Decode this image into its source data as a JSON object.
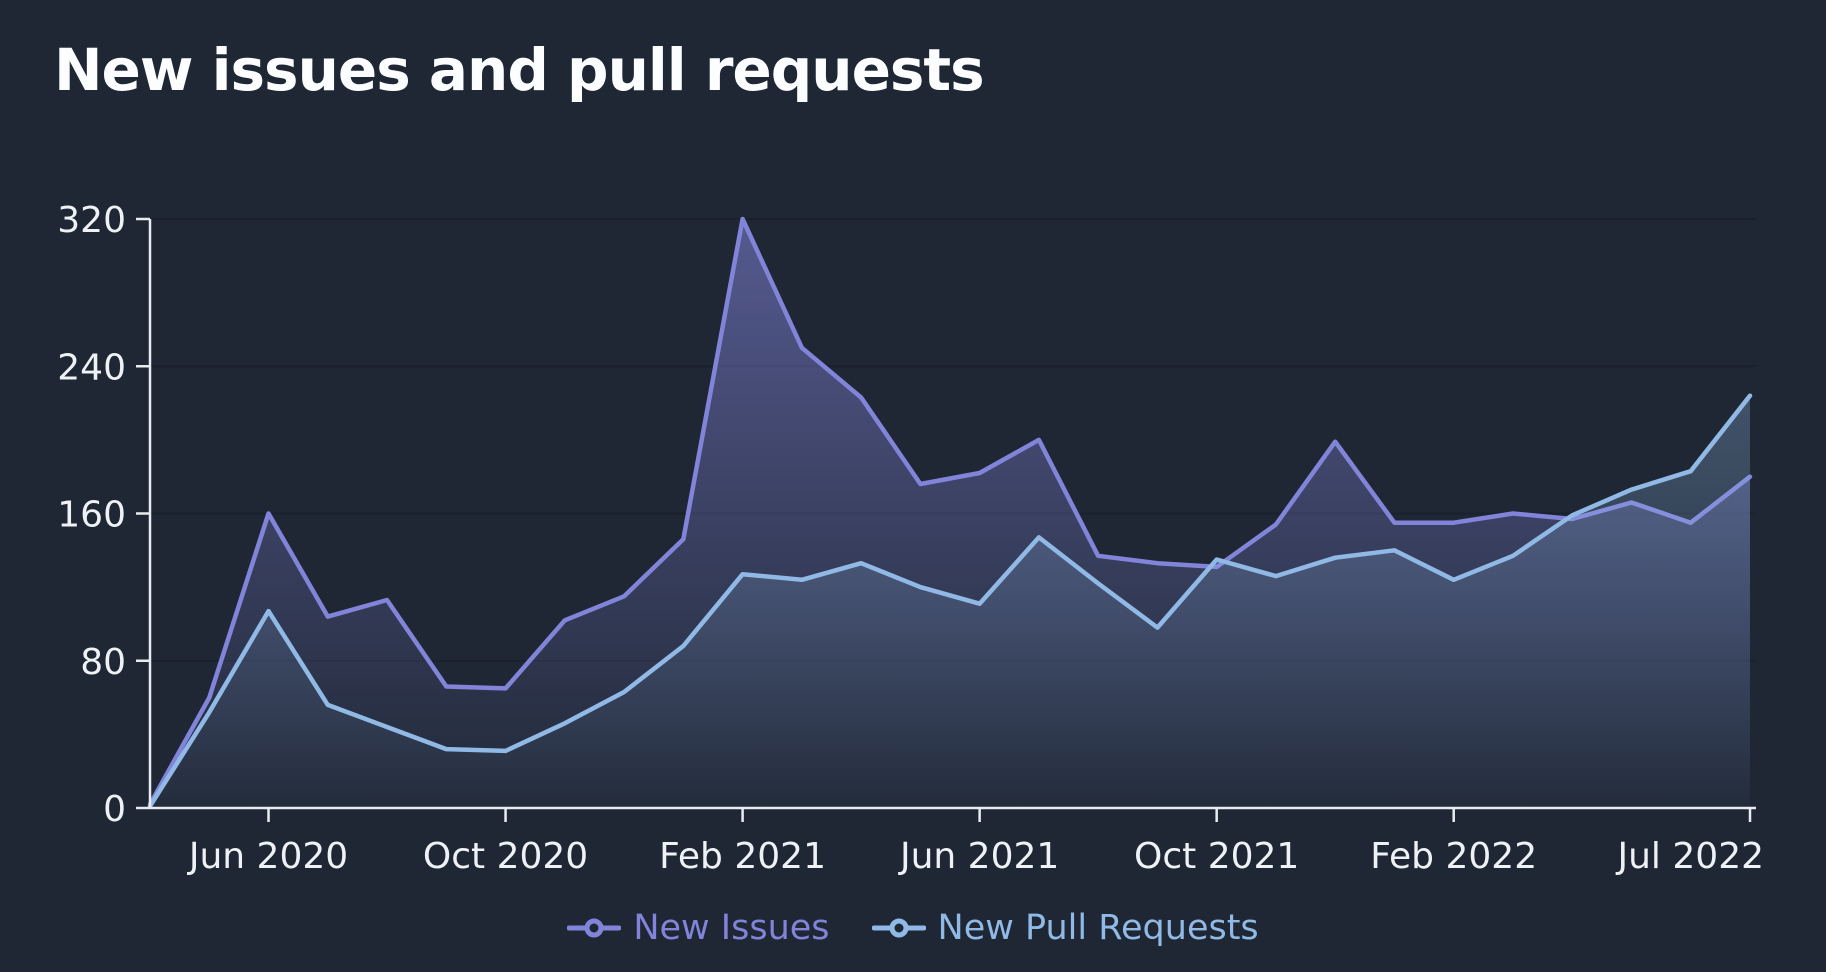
{
  "page": {
    "title": "New issues and pull requests"
  },
  "legend": {
    "items": [
      {
        "label": "New Issues",
        "color": "#8184d9"
      },
      {
        "label": "New Pull Requests",
        "color": "#90b9e6"
      }
    ]
  },
  "chart_data": {
    "type": "area",
    "title": "New issues and pull requests",
    "x": [
      "Apr 2020",
      "May 2020",
      "Jun 2020",
      "Jul 2020",
      "Aug 2020",
      "Sep 2020",
      "Oct 2020",
      "Nov 2020",
      "Dec 2020",
      "Jan 2021",
      "Feb 2021",
      "Mar 2021",
      "Apr 2021",
      "May 2021",
      "Jun 2021",
      "Jul 2021",
      "Aug 2021",
      "Sep 2021",
      "Oct 2021",
      "Nov 2021",
      "Dec 2021",
      "Jan 2022",
      "Feb 2022",
      "Mar 2022",
      "Apr 2022",
      "May 2022",
      "Jun 2022",
      "Jul 2022"
    ],
    "series": [
      {
        "name": "New Issues",
        "color": "#8184d9",
        "fill_opacity_top": 0.55,
        "fill_opacity_bottom": 0.02,
        "values": [
          2,
          60,
          160,
          104,
          113,
          66,
          65,
          102,
          115,
          146,
          320,
          250,
          223,
          176,
          182,
          200,
          137,
          133,
          131,
          154,
          199,
          155,
          155,
          160,
          157,
          166,
          155,
          180
        ]
      },
      {
        "name": "New Pull Requests",
        "color": "#90b9e6",
        "fill_opacity_top": 0.42,
        "fill_opacity_bottom": 0.02,
        "values": [
          1,
          52,
          107,
          56,
          44,
          32,
          31,
          46,
          63,
          88,
          127,
          124,
          133,
          120,
          111,
          147,
          122,
          98,
          135,
          126,
          136,
          140,
          124,
          137,
          159,
          173,
          183,
          224
        ]
      }
    ],
    "ylim": [
      0,
      320
    ],
    "y_ticks": [
      0,
      80,
      160,
      240,
      320
    ],
    "x_tick_labels": [
      "Jun 2020",
      "Oct 2020",
      "Feb 2021",
      "Jun 2021",
      "Oct 2021",
      "Feb 2022",
      "Jul 2022"
    ],
    "x_tick_indices": [
      2,
      6,
      10,
      14,
      18,
      22,
      27
    ],
    "grid": "horizontal",
    "legend_position": "bottom-center",
    "colors": {
      "background": "#1f2734",
      "grid": "#1a212d",
      "axis": "#e8ecf2",
      "tick_text": "#eef1f5",
      "title_text": "#fcfdfe"
    }
  }
}
